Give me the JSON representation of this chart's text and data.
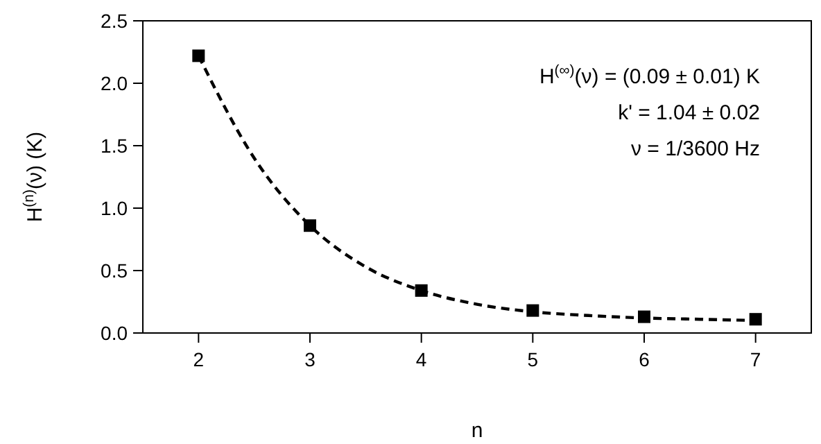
{
  "chart_data": {
    "type": "scatter",
    "xlabel": "n",
    "ylabel": "H$^{(n)}$(ν) (K)",
    "xlim": [
      1.5,
      7.5
    ],
    "xticks": [
      2,
      3,
      4,
      5,
      6,
      7
    ],
    "ylim": [
      0,
      2.5
    ],
    "yticks": [
      {
        "value": 0,
        "label": "0.0"
      },
      0.5,
      {
        "value": 1,
        "label": "1.0"
      },
      1.5,
      {
        "value": 2,
        "label": "2.0"
      },
      2.5
    ],
    "grid": false,
    "marker": "square",
    "series": [
      {
        "type": "line",
        "line_style": "dashed",
        "marker": "none",
        "color": "#000000",
        "x": [
          2,
          2.5,
          3,
          3.5,
          4,
          4.5,
          5,
          5.5,
          6,
          6.5,
          7
        ],
        "values": [
          2.22,
          1.4,
          0.86,
          0.53,
          0.34,
          0.23,
          0.17,
          0.14,
          0.12,
          0.11,
          0.1
        ]
      },
      {
        "color": "#000000",
        "x": [
          2,
          3,
          4,
          5,
          6,
          7
        ],
        "values": [
          2.22,
          0.86,
          0.34,
          0.18,
          0.13,
          0.11
        ]
      }
    ],
    "annotations": [
      "H$^{(∞)}$(ν) = (0.09 ± 0.01) K",
      "k' = 1.04 ± 0.02",
      "ν = 1/3600 Hz"
    ]
  }
}
